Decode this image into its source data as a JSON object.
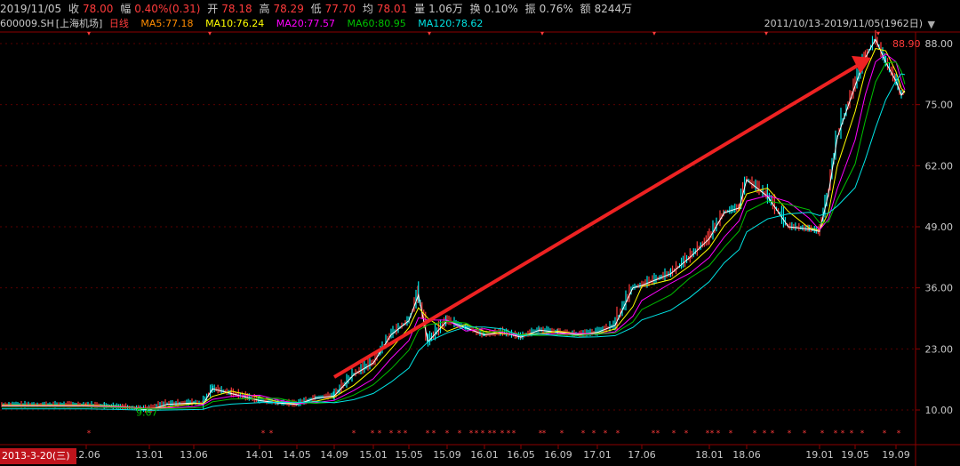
{
  "header": {
    "date": "2019/11/05",
    "close_label": "收",
    "close_value": "78.00",
    "amp_label": "幅",
    "amp_value": "0.40%(0.31)",
    "open_label": "开",
    "open_value": "78.18",
    "high_label": "高",
    "high_value": "78.29",
    "low_label": "低",
    "low_value": "77.70",
    "avg_label": "均",
    "avg_value": "78.01",
    "vol_label": "量",
    "vol_value": "1.06万",
    "turnover_label": "换",
    "turnover_value": "0.10%",
    "swing_label": "振",
    "swing_value": "0.76%",
    "amount_label": "额",
    "amount_value": "8244万"
  },
  "ma_bar": {
    "symbol": "600009.SH",
    "name": "[上海机场]",
    "period": "日线",
    "ma5": "MA5:77.18",
    "ma10": "MA10:76.24",
    "ma20": "MA20:77.57",
    "ma60": "MA60:80.95",
    "ma120": "MA120:78.62"
  },
  "range_label": "2011/10/13-2019/11/05(1962日)",
  "cursor_date": "2013-3-20(三)",
  "colors": {
    "up": "#ff3b3b",
    "down": "#00e5e5",
    "ma5": "#ffffff",
    "ma10": "#ffff00",
    "ma20": "#ff00ff",
    "ma60": "#00c000",
    "ma120": "#00e5e5",
    "axis": "#8b0000",
    "arrow": "#ee2222"
  },
  "chart_data": {
    "type": "line",
    "y_ticks": [
      "88.00",
      "75.00",
      "62.00",
      "49.00",
      "36.00",
      "23.00",
      "10.00"
    ],
    "ylim": [
      10,
      88
    ],
    "x_ticks": [
      "12.06",
      "13.01",
      "13.06",
      "14.01",
      "14.05",
      "14.09",
      "15.01",
      "15.05",
      "15.09",
      "16.01",
      "16.05",
      "16.09",
      "17.01",
      "17.06",
      "18.01",
      "18.06",
      "19.01",
      "19.05",
      "19.09"
    ],
    "annotations": {
      "max_label": "88.90",
      "min_label": "9.67"
    },
    "series": [
      {
        "x": [
          "12.06",
          "12.08",
          "12.10",
          "13.01",
          "13.03",
          "13.06",
          "13.07",
          "13.08",
          "13.10",
          "14.01",
          "14.03",
          "14.05",
          "14.07",
          "14.09",
          "14.11",
          "15.01",
          "15.03",
          "15.05",
          "15.06",
          "15.07",
          "15.09",
          "15.11",
          "16.01",
          "16.03",
          "16.05",
          "16.07",
          "16.09",
          "16.11",
          "17.01",
          "17.03",
          "17.05",
          "17.06",
          "17.09",
          "17.11",
          "18.01",
          "18.03",
          "18.05",
          "18.06",
          "18.08",
          "18.10",
          "18.12",
          "19.01",
          "19.02",
          "19.03",
          "19.05",
          "19.06",
          "19.07",
          "19.08",
          "19.09",
          "19.10",
          "19.11"
        ],
        "values": [
          11.0,
          10.8,
          10.6,
          10.0,
          11.2,
          11.5,
          11.3,
          14.5,
          13.5,
          12.0,
          11.5,
          11.2,
          12.5,
          13.0,
          17.5,
          20.0,
          26.0,
          29.0,
          34.5,
          24.5,
          29.0,
          27.5,
          26.0,
          26.5,
          25.5,
          27.0,
          26.5,
          26.0,
          26.5,
          28.0,
          36.0,
          36.5,
          39.0,
          42.5,
          46.5,
          52.0,
          53.0,
          59.0,
          55.5,
          49.0,
          48.5,
          48.0,
          56.0,
          68.0,
          79.0,
          85.0,
          88.9,
          84.0,
          80.0,
          77.0,
          78.0
        ]
      }
    ]
  }
}
